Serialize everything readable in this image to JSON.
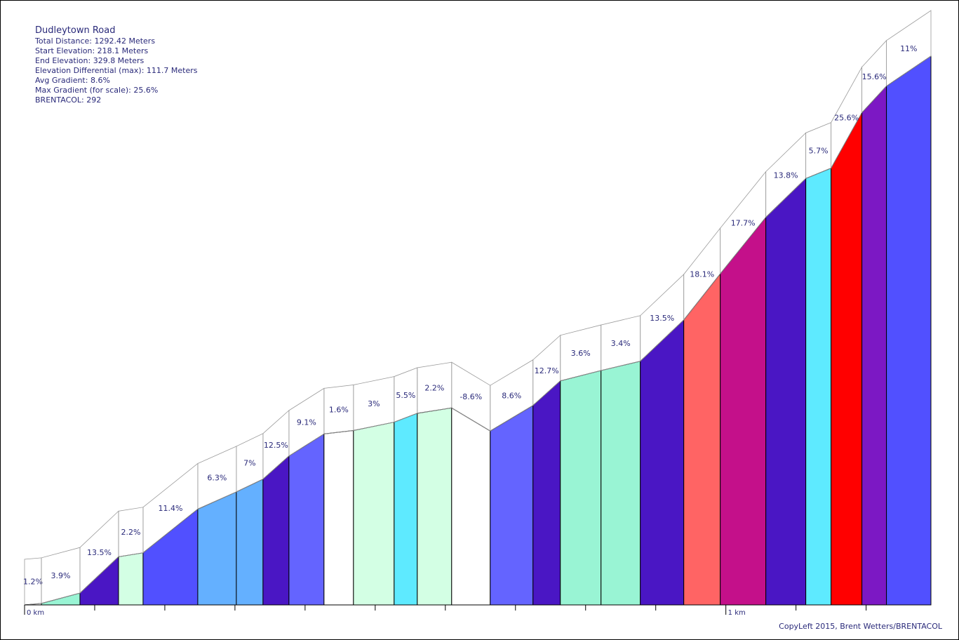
{
  "info": {
    "title": "Dudleytown Road",
    "total_distance": "Total Distance: 1292.42 Meters",
    "start_elevation": "Start Elevation: 218.1 Meters",
    "end_elevation": "End Elevation: 329.8 Meters",
    "elevation_diff": "Elevation Differential (max): 111.7 Meters",
    "avg_gradient": "Avg Gradient: 8.6%",
    "max_gradient": "Max Gradient (for scale): 25.6%",
    "brentacol": "BRENTACOL: 292"
  },
  "credit": "CopyLeft 2015, Brent Wetters/BRENTACOL",
  "chart_data": {
    "type": "area",
    "title": "Dudleytown Road",
    "xlabel": "",
    "ylabel": "",
    "x_ticks": [
      "0 km",
      "1 km"
    ],
    "x_unit": "m",
    "xlim": [
      0,
      1292.42
    ],
    "ylim": [
      218.1,
      329.8
    ],
    "series": [
      {
        "segments": [
          {
            "end_m": 24,
            "elev_m": 218.4,
            "grade": "1.2%",
            "color": "#ffffff"
          },
          {
            "end_m": 79,
            "elev_m": 220.5,
            "grade": "3.9%",
            "color": "#99f4d4"
          },
          {
            "end_m": 134,
            "elev_m": 227.9,
            "grade": "13.5%",
            "color": "#4a16c4"
          },
          {
            "end_m": 169,
            "elev_m": 228.7,
            "grade": "2.2%",
            "color": "#d3ffe4"
          },
          {
            "end_m": 247,
            "elev_m": 237.6,
            "grade": "11.4%",
            "color": "#5150ff"
          },
          {
            "end_m": 302,
            "elev_m": 241.1,
            "grade": "6.3%",
            "color": "#64b0ff"
          },
          {
            "end_m": 340,
            "elev_m": 243.7,
            "grade": "7%",
            "color": "#64b0ff"
          },
          {
            "end_m": 377,
            "elev_m": 248.4,
            "grade": "12.5%",
            "color": "#4a16c4"
          },
          {
            "end_m": 427,
            "elev_m": 252.9,
            "grade": "9.1%",
            "color": "#6464ff"
          },
          {
            "end_m": 469,
            "elev_m": 253.6,
            "grade": "1.6%",
            "color": "#ffffff"
          },
          {
            "end_m": 527,
            "elev_m": 255.3,
            "grade": "3%",
            "color": "#d3ffe4"
          },
          {
            "end_m": 560,
            "elev_m": 257.1,
            "grade": "5.5%",
            "color": "#5eeaff"
          },
          {
            "end_m": 609,
            "elev_m": 258.2,
            "grade": "2.2%",
            "color": "#d3ffe4"
          },
          {
            "end_m": 664,
            "elev_m": 253.5,
            "grade": "-8.6%",
            "color": "#ffffff"
          },
          {
            "end_m": 725,
            "elev_m": 258.7,
            "grade": "8.6%",
            "color": "#6464ff"
          },
          {
            "end_m": 764,
            "elev_m": 263.7,
            "grade": "12.7%",
            "color": "#4a16c4"
          },
          {
            "end_m": 822,
            "elev_m": 265.8,
            "grade": "3.6%",
            "color": "#99f4d4"
          },
          {
            "end_m": 878,
            "elev_m": 267.7,
            "grade": "3.4%",
            "color": "#99f4d4"
          },
          {
            "end_m": 940,
            "elev_m": 276.1,
            "grade": "13.5%",
            "color": "#4a16c4"
          },
          {
            "end_m": 992,
            "elev_m": 285.5,
            "grade": "18.1%",
            "color": "#ff6464"
          },
          {
            "end_m": 1057,
            "elev_m": 297.0,
            "grade": "17.7%",
            "color": "#c4108a"
          },
          {
            "end_m": 1114,
            "elev_m": 304.9,
            "grade": "13.8%",
            "color": "#4a16c4"
          },
          {
            "end_m": 1150,
            "elev_m": 307.0,
            "grade": "5.7%",
            "color": "#5eeaff"
          },
          {
            "end_m": 1194,
            "elev_m": 318.3,
            "grade": "25.6%",
            "color": "#ff0000"
          },
          {
            "end_m": 1229,
            "elev_m": 323.7,
            "grade": "15.6%",
            "color": "#7c18c4"
          },
          {
            "end_m": 1292.42,
            "elev_m": 329.8,
            "grade": "11%",
            "color": "#5150ff"
          }
        ]
      }
    ]
  }
}
